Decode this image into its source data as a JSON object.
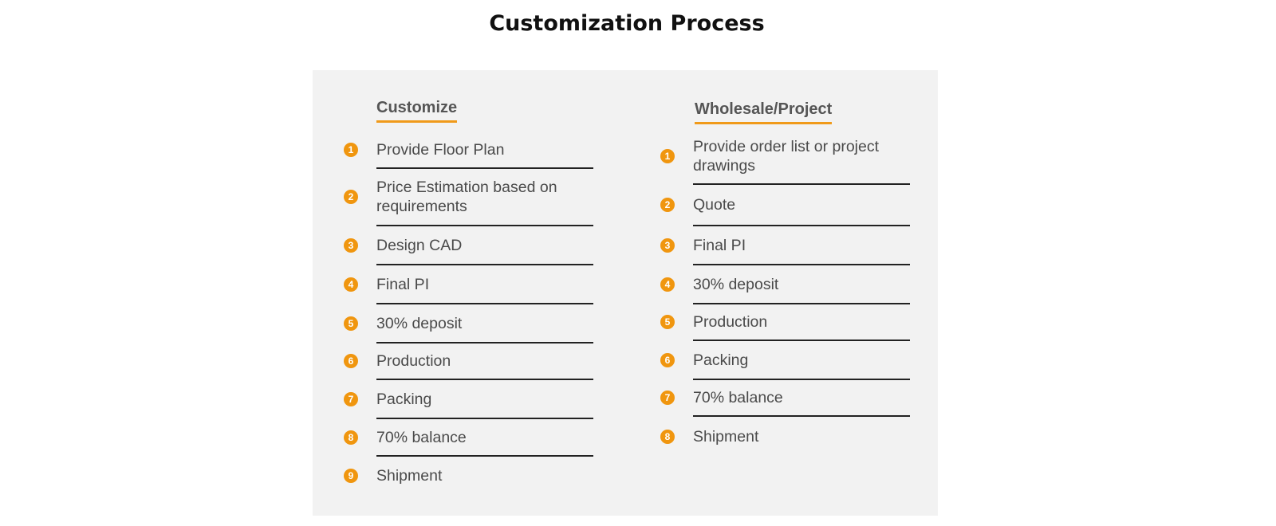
{
  "title": "Customization Process",
  "accent_color": "#f09a1a",
  "customize": {
    "heading": "Customize",
    "steps": [
      {
        "num": "1",
        "label": "Provide Floor Plan"
      },
      {
        "num": "2",
        "label": "Price Estimation based on requirements"
      },
      {
        "num": "3",
        "label": "Design CAD"
      },
      {
        "num": "4",
        "label": "Final PI"
      },
      {
        "num": "5",
        "label": "30% deposit"
      },
      {
        "num": "6",
        "label": "Production"
      },
      {
        "num": "7",
        "label": "Packing"
      },
      {
        "num": "8",
        "label": "70% balance"
      },
      {
        "num": "9",
        "label": "Shipment"
      }
    ]
  },
  "wholesale": {
    "heading": "Wholesale/Project",
    "steps": [
      {
        "num": "1",
        "label": "Provide order list or project drawings"
      },
      {
        "num": "2",
        "label": "Quote"
      },
      {
        "num": "3",
        "label": "Final PI"
      },
      {
        "num": "4",
        "label": "30% deposit"
      },
      {
        "num": "5",
        "label": "Production"
      },
      {
        "num": "6",
        "label": "Packing"
      },
      {
        "num": "7",
        "label": "70% balance"
      },
      {
        "num": "8",
        "label": "Shipment"
      }
    ]
  }
}
